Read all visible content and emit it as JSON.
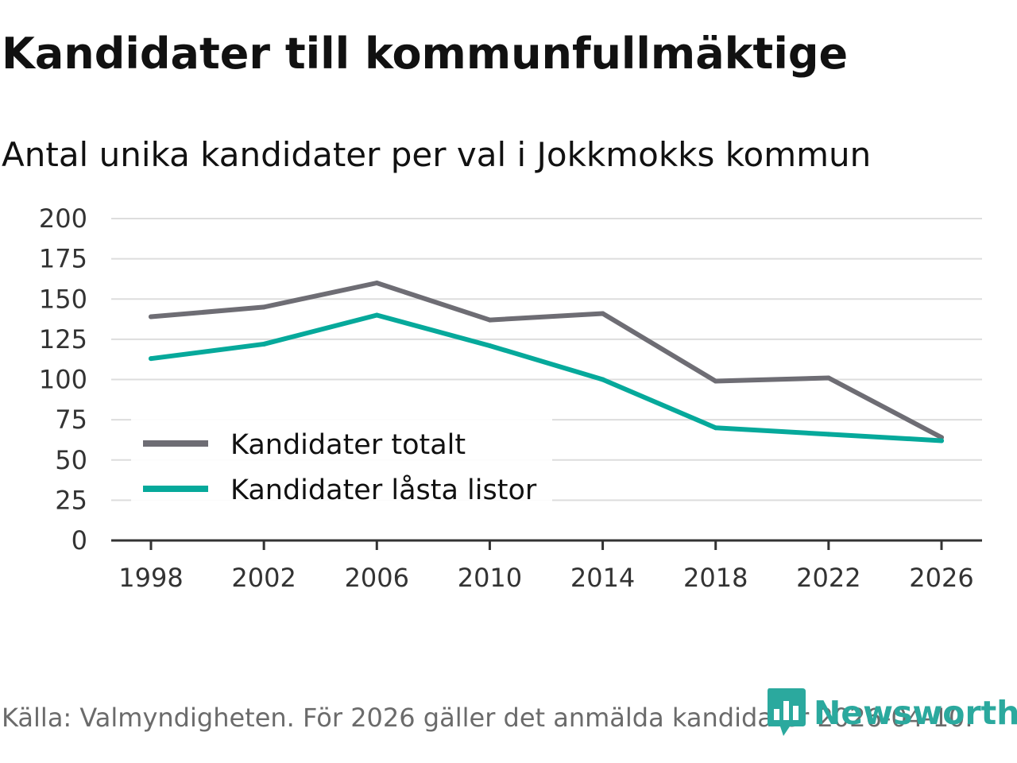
{
  "chart_data": {
    "type": "line",
    "title": "Kandidater till kommunfullmäktige",
    "subtitle": "Antal unika kandidater per val i Jokkmokks kommun",
    "x": [
      "1998",
      "2002",
      "2006",
      "2010",
      "2014",
      "2018",
      "2022",
      "2026"
    ],
    "series": [
      {
        "name": "Kandidater totalt",
        "color": "#6e6d74",
        "values": [
          139,
          145,
          160,
          137,
          141,
          99,
          101,
          64
        ]
      },
      {
        "name": "Kandidater låsta listor",
        "color": "#06a99b",
        "values": [
          113,
          122,
          140,
          121,
          100,
          70,
          66,
          62
        ]
      }
    ],
    "ylim": [
      0,
      200
    ],
    "yticks": [
      0,
      25,
      50,
      75,
      100,
      125,
      150,
      175,
      200
    ],
    "xlabel": "",
    "ylabel": "",
    "grid": true,
    "legend_position": "bottom-left"
  },
  "source": "Källa: Valmyndigheten. För 2026 gäller det anmälda kandidater 2026-04-10.",
  "brand": {
    "name": "Newsworthy",
    "icon": "newsworthy-logo-icon",
    "color": "#2ba99e"
  }
}
